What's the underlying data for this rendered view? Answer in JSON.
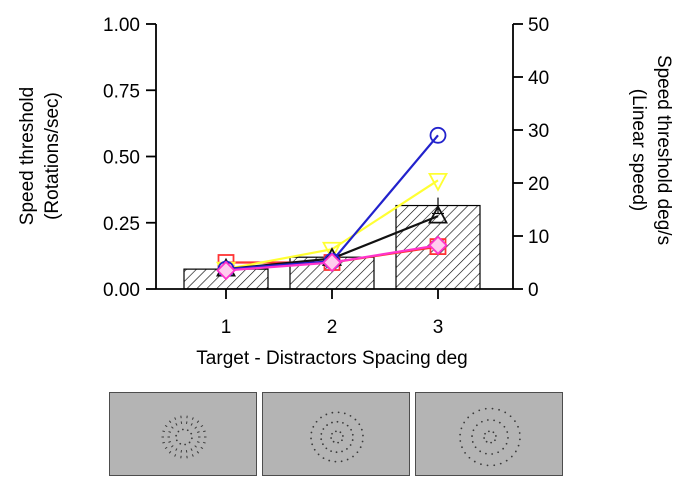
{
  "chart_data": {
    "type": "bar",
    "categories": [
      "1",
      "2",
      "3"
    ],
    "xlabel": "Target - Distractors Spacing deg",
    "ylabel_left": [
      "Speed threshold",
      "(Rotations/sec)"
    ],
    "ylabel_right": [
      "Speed threshold deg/s",
      "(Linear speed)"
    ],
    "ylim_left": [
      0,
      1
    ],
    "ylim_right": [
      0,
      50
    ],
    "yticks_left": [
      "0.00",
      "0.25",
      "0.50",
      "0.75",
      "1.00"
    ],
    "yticks_right": [
      "0",
      "10",
      "20",
      "30",
      "40",
      "50"
    ],
    "bars": {
      "values": [
        0.075,
        0.12,
        0.315
      ],
      "errors": [
        0.0,
        0.0,
        0.03
      ],
      "fill": "hatched"
    },
    "series": [
      {
        "color": "#ff3333",
        "marker": "square",
        "values": [
          0.1,
          0.1,
          0.16
        ]
      },
      {
        "color": "#ffff33",
        "marker": "triangle-down",
        "values": [
          0.075,
          0.15,
          0.41
        ]
      },
      {
        "color": "#111111",
        "marker": "triangle-up",
        "values": [
          0.075,
          0.115,
          0.275
        ]
      },
      {
        "color": "#2222cc",
        "marker": "circle",
        "values": [
          0.075,
          0.105,
          0.58
        ]
      },
      {
        "color": "#ff33cc",
        "marker": "diamond",
        "values": [
          0.07,
          0.1,
          0.165
        ]
      }
    ],
    "grid": false,
    "legend": "none"
  },
  "stimuli": [
    {
      "spacing": "1"
    },
    {
      "spacing": "2"
    },
    {
      "spacing": "3"
    }
  ],
  "colors": {
    "panel": "#b4b4b4",
    "panel_border": "#4d4d4d",
    "dot": "#3a3a3a"
  }
}
